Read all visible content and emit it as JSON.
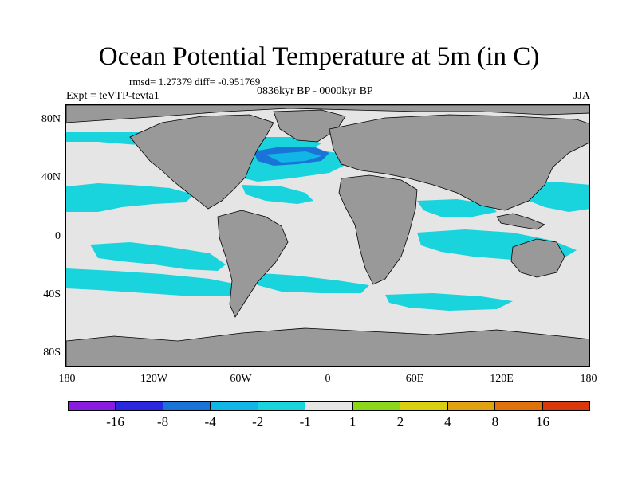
{
  "title": "Ocean Potential Temperature at 5m (in C)",
  "stats": "rmsd= 1.27379 diff= -0.951769",
  "period": "0836kyr BP - 0000kyr BP",
  "experiment": "Expt = teVTP-tevta1",
  "season": "JJA",
  "map": {
    "projection": "cylindrical-equidistant",
    "lat_labels": [
      "80N",
      "40N",
      "0",
      "40S",
      "80S"
    ],
    "lon_labels": [
      "180",
      "120W",
      "60W",
      "0",
      "60E",
      "120E",
      "180"
    ],
    "colors": {
      "land": "#999999",
      "neutral_band": "#e5e5e5",
      "cyan_band": "#19d4dc",
      "light_blue_band": "#10b6e6",
      "blue_band": "#1a74d8"
    }
  },
  "colorbar": {
    "labels": [
      "-16",
      "-8",
      "-4",
      "-2",
      "-1",
      "1",
      "2",
      "4",
      "8",
      "16"
    ],
    "colors": [
      "#8a1ce0",
      "#2a28de",
      "#1a74d8",
      "#10b6e6",
      "#19d4dc",
      "#e5e5e5",
      "#8cd61c",
      "#d8d010",
      "#e0a212",
      "#e0720c",
      "#d8380c"
    ]
  }
}
